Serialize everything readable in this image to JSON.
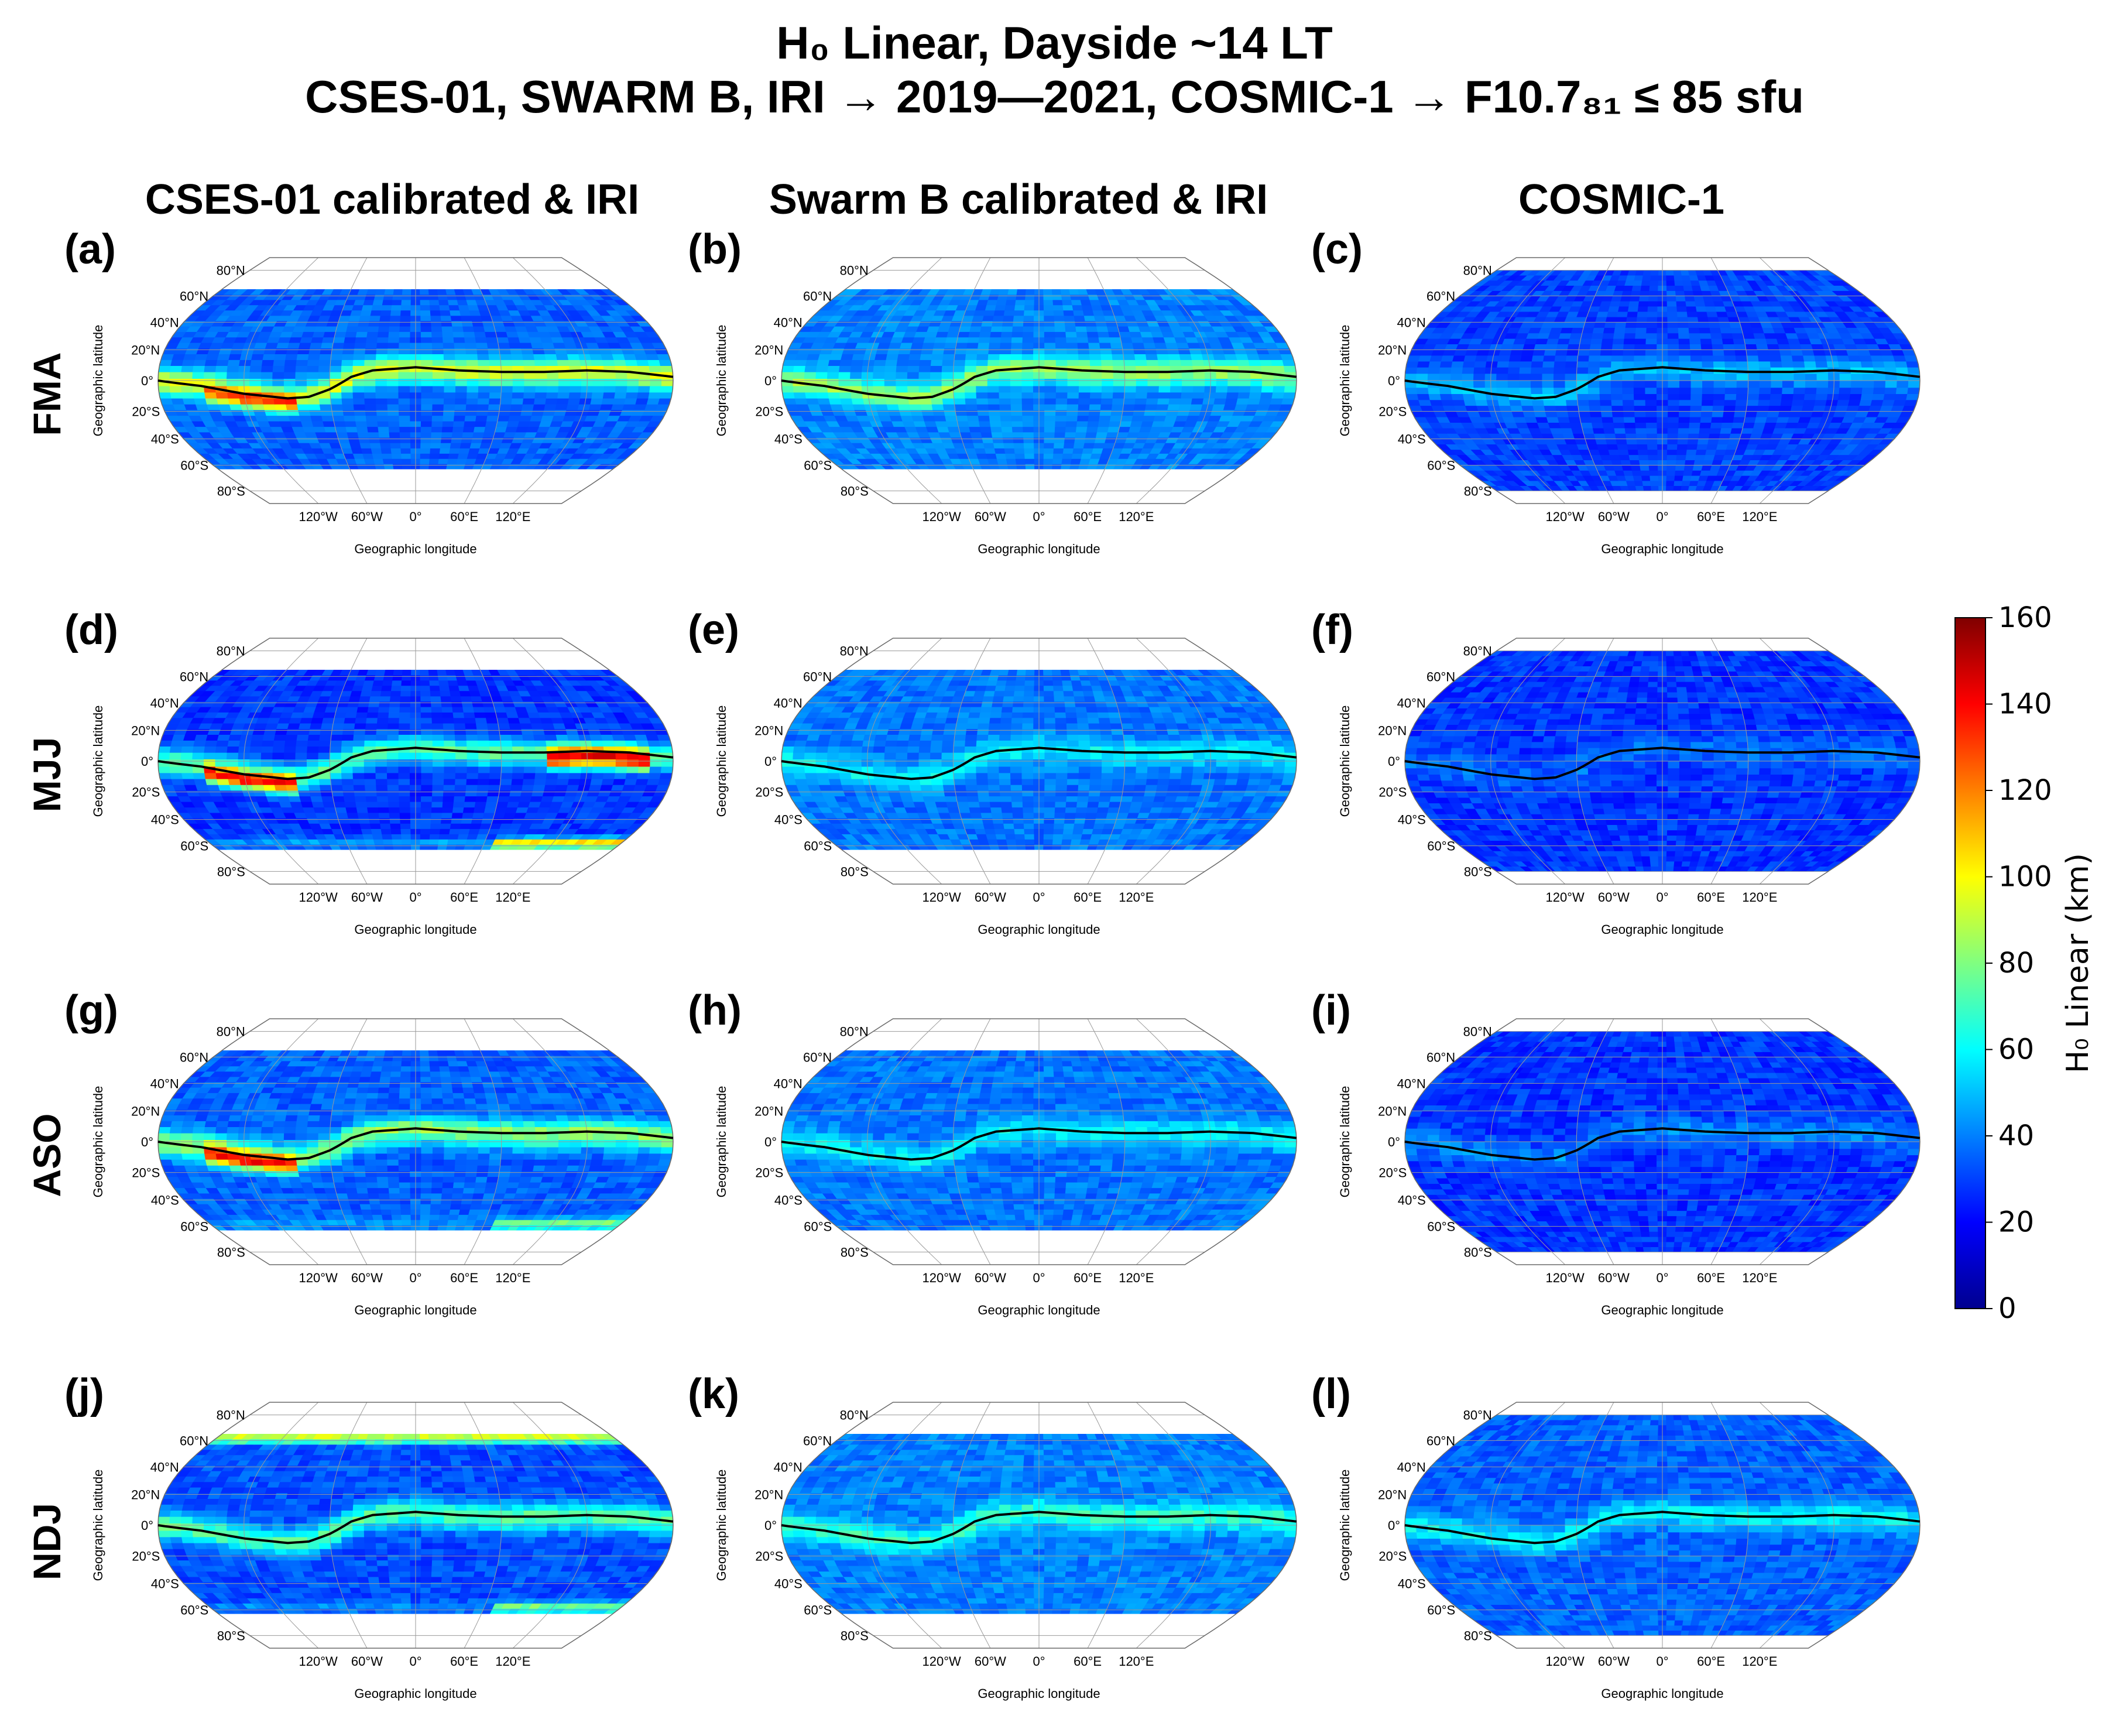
{
  "title": {
    "line1": "H₀ Linear, Dayside ~14 LT",
    "line2": "CSES-01, SWARM B, IRI → 2019—2021,  COSMIC-1 → F10.7₈₁ ≤ 85 sfu"
  },
  "columns": [
    "CSES-01 calibrated & IRI",
    "Swarm B calibrated & IRI",
    "COSMIC-1"
  ],
  "rows": [
    "FMA",
    "MJJ",
    "ASO",
    "NDJ"
  ],
  "panel_labels": [
    "(a)",
    "(b)",
    "(c)",
    "(d)",
    "(e)",
    "(f)",
    "(g)",
    "(h)",
    "(i)",
    "(j)",
    "(k)",
    "(l)"
  ],
  "colors": {
    "background": "#ffffff",
    "cmap": [
      "#00008f",
      "#0000ff",
      "#0080ff",
      "#00ffff",
      "#80ff80",
      "#ffff00",
      "#ff8000",
      "#ff0000",
      "#800000"
    ]
  },
  "chart_data": {
    "type": "heatmap",
    "projection": "Robinson",
    "xlabel": "Geographic longitude",
    "ylabel": "Geographic latitude",
    "lat_ticks": [
      "80°N",
      "60°N",
      "40°N",
      "20°N",
      "0°",
      "20°S",
      "40°S",
      "60°S",
      "80°S"
    ],
    "lat_values": [
      80,
      60,
      40,
      20,
      0,
      -20,
      -40,
      -60,
      -80
    ],
    "lon_ticks": [
      "120°W",
      "60°W",
      "0°",
      "60°E",
      "120°E"
    ],
    "lon_values": [
      -120,
      -60,
      0,
      60,
      120
    ],
    "colorbar": {
      "label": "H₀ Linear (km)",
      "range": [
        0,
        160
      ],
      "ticks": [
        "0",
        "20",
        "40",
        "60",
        "80",
        "100",
        "120",
        "140",
        "160"
      ]
    },
    "magnetic_equator": [
      [
        -180,
        0
      ],
      [
        -150,
        -3
      ],
      [
        -120,
        -8
      ],
      [
        -90,
        -11
      ],
      [
        -75,
        -10
      ],
      [
        -60,
        -5
      ],
      [
        -45,
        2
      ],
      [
        -30,
        6
      ],
      [
        0,
        8
      ],
      [
        30,
        6
      ],
      [
        60,
        5
      ],
      [
        90,
        5
      ],
      [
        120,
        6
      ],
      [
        150,
        5
      ],
      [
        180,
        2
      ]
    ],
    "panels": [
      {
        "id": "a",
        "base": 35,
        "eia": 95,
        "eia_hot": [
          [
            -150,
            -90,
            140
          ]
        ],
        "south_band": 0,
        "north_band": 0,
        "lat_cover": [
          -63,
          62
        ]
      },
      {
        "id": "b",
        "base": 40,
        "eia": 85,
        "eia_hot": [],
        "south_band": 0,
        "north_band": 0,
        "lat_cover": [
          -63,
          62
        ]
      },
      {
        "id": "c",
        "base": 30,
        "eia": 50,
        "eia_hot": [],
        "south_band": 0,
        "north_band": 0,
        "lat_cover": [
          -80,
          80
        ]
      },
      {
        "id": "d",
        "base": 28,
        "eia": 75,
        "eia_hot": [
          [
            -150,
            -90,
            150
          ],
          [
            90,
            160,
            150
          ]
        ],
        "south_band": 110,
        "north_band": 0,
        "lat_cover": [
          -63,
          62
        ]
      },
      {
        "id": "e",
        "base": 38,
        "eia": 60,
        "eia_hot": [],
        "south_band": 0,
        "north_band": 0,
        "lat_cover": [
          -63,
          62
        ]
      },
      {
        "id": "f",
        "base": 28,
        "eia": 38,
        "eia_hot": [],
        "south_band": 0,
        "north_band": 0,
        "lat_cover": [
          -80,
          80
        ]
      },
      {
        "id": "g",
        "base": 35,
        "eia": 85,
        "eia_hot": [
          [
            -150,
            -90,
            150
          ]
        ],
        "south_band": 80,
        "north_band": 0,
        "lat_cover": [
          -63,
          62
        ]
      },
      {
        "id": "h",
        "base": 38,
        "eia": 60,
        "eia_hot": [],
        "south_band": 0,
        "north_band": 0,
        "lat_cover": [
          -63,
          62
        ]
      },
      {
        "id": "i",
        "base": 28,
        "eia": 42,
        "eia_hot": [],
        "south_band": 0,
        "north_band": 0,
        "lat_cover": [
          -80,
          80
        ]
      },
      {
        "id": "j",
        "base": 32,
        "eia": 75,
        "eia_hot": [],
        "south_band": 80,
        "north_band": 95,
        "lat_cover": [
          -63,
          62
        ]
      },
      {
        "id": "k",
        "base": 40,
        "eia": 70,
        "eia_hot": [],
        "south_band": 0,
        "north_band": 0,
        "lat_cover": [
          -63,
          62
        ]
      },
      {
        "id": "l",
        "base": 35,
        "eia": 60,
        "eia_hot": [],
        "south_band": 0,
        "north_band": 0,
        "lat_cover": [
          -80,
          80
        ]
      }
    ]
  }
}
